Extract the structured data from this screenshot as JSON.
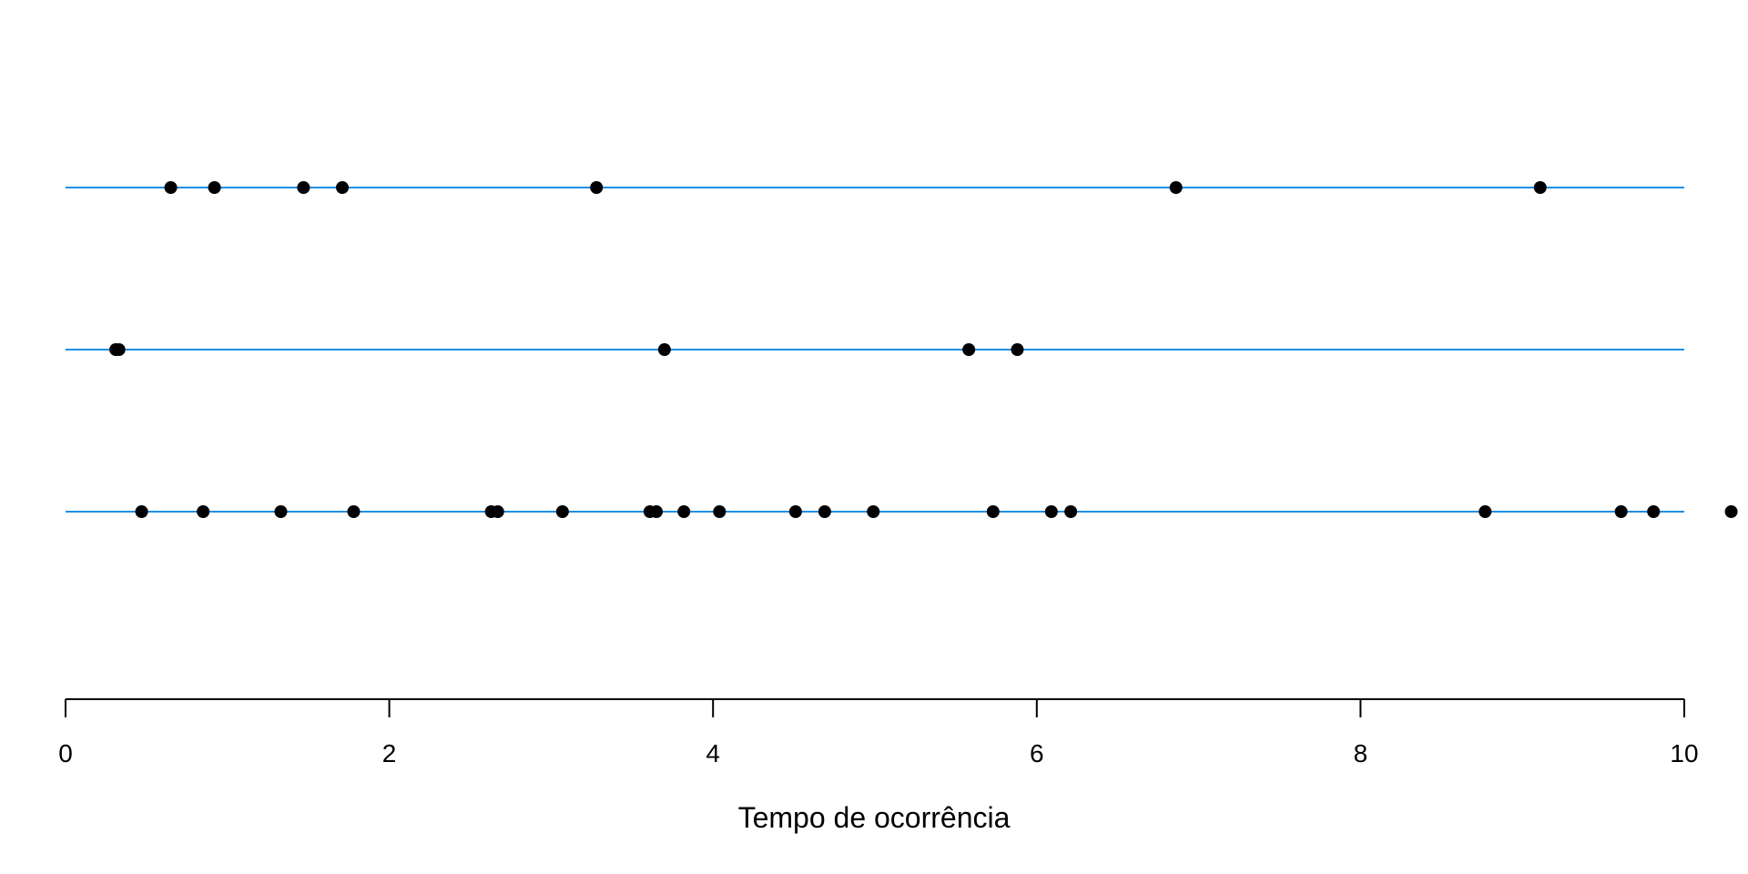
{
  "chart_data": {
    "type": "scatter",
    "title": "",
    "xlabel": "Tempo de ocorrência",
    "ylabel": "",
    "xlim": [
      0,
      10
    ],
    "x_ticks": [
      0,
      2,
      4,
      6,
      8,
      10
    ],
    "x_tick_labels": [
      "0",
      "2",
      "4",
      "6",
      "8",
      "10"
    ],
    "grid": false,
    "legend": "none",
    "series": [
      {
        "row": 3,
        "values": [
          0.65,
          0.92,
          1.47,
          1.71,
          3.28,
          6.86,
          9.11
        ]
      },
      {
        "row": 2,
        "values": [
          0.31,
          0.33,
          3.7,
          5.58,
          5.88
        ]
      },
      {
        "row": 1,
        "values": [
          0.47,
          0.85,
          1.33,
          1.78,
          2.63,
          2.67,
          3.07,
          3.61,
          3.65,
          3.82,
          4.04,
          4.51,
          4.69,
          4.99,
          5.73,
          6.09,
          6.21,
          8.77,
          9.61,
          9.81,
          10.29
        ]
      }
    ],
    "colors": {
      "line": "#1f8fe5",
      "point": "#000000",
      "axis": "#000000"
    }
  }
}
